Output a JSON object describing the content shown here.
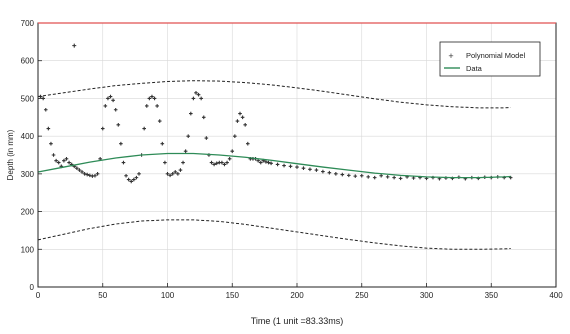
{
  "chart_data": {
    "type": "scatter",
    "title": "",
    "xlabel": "Time (1 unit =83.33ms)",
    "ylabel": "Depth (in mm)",
    "xlim": [
      0,
      400
    ],
    "ylim": [
      0,
      700
    ],
    "xticks": [
      0,
      50,
      100,
      150,
      200,
      250,
      300,
      350,
      400
    ],
    "yticks": [
      0,
      100,
      200,
      300,
      400,
      500,
      600,
      700
    ],
    "grid": true,
    "legend_position": "top-right",
    "series": [
      {
        "name": "Polynomial Model",
        "kind": "markers",
        "color": "#333333",
        "x": [
          2,
          4,
          6,
          8,
          10,
          12,
          14,
          16,
          18,
          20,
          22,
          24,
          26,
          28,
          30,
          32,
          34,
          36,
          38,
          40,
          42,
          44,
          46,
          48,
          50,
          52,
          54,
          56,
          58,
          60,
          62,
          64,
          66,
          68,
          70,
          72,
          74,
          76,
          78,
          80,
          82,
          84,
          86,
          88,
          90,
          92,
          94,
          96,
          98,
          100,
          102,
          104,
          106,
          108,
          110,
          112,
          114,
          116,
          118,
          120,
          122,
          124,
          126,
          128,
          130,
          132,
          134,
          136,
          138,
          140,
          142,
          144,
          146,
          148,
          150,
          152,
          154,
          156,
          158,
          160,
          162,
          164,
          166,
          168,
          170,
          172,
          174,
          176,
          178,
          180,
          185,
          190,
          195,
          200,
          205,
          210,
          215,
          220,
          225,
          230,
          235,
          240,
          245,
          250,
          255,
          260,
          265,
          270,
          275,
          280,
          285,
          290,
          295,
          300,
          305,
          310,
          315,
          320,
          325,
          330,
          335,
          340,
          345,
          350,
          355,
          360,
          365
        ],
        "y": [
          505,
          500,
          470,
          420,
          380,
          350,
          335,
          330,
          320,
          335,
          340,
          330,
          325,
          320,
          315,
          310,
          305,
          300,
          298,
          296,
          294,
          295,
          300,
          340,
          420,
          480,
          500,
          505,
          495,
          470,
          430,
          380,
          330,
          295,
          285,
          280,
          285,
          290,
          300,
          350,
          420,
          480,
          500,
          505,
          500,
          480,
          440,
          380,
          330,
          300,
          296,
          300,
          305,
          300,
          310,
          330,
          360,
          400,
          460,
          500,
          515,
          510,
          500,
          450,
          395,
          350,
          330,
          325,
          328,
          330,
          330,
          325,
          330,
          340,
          360,
          400,
          440,
          460,
          450,
          430,
          380,
          340,
          340,
          340,
          335,
          330,
          335,
          332,
          330,
          328,
          325,
          322,
          320,
          318,
          315,
          312,
          310,
          306,
          303,
          300,
          298,
          296,
          294,
          295,
          292,
          290,
          295,
          292,
          290,
          288,
          292,
          289,
          290,
          288,
          290,
          287,
          289,
          288,
          291,
          287,
          290,
          288,
          291,
          290,
          292,
          290,
          290
        ]
      },
      {
        "name": "Data",
        "kind": "line",
        "color": "#2e8b57",
        "x": [
          0,
          20,
          40,
          60,
          80,
          100,
          120,
          140,
          160,
          180,
          200,
          220,
          240,
          260,
          280,
          300,
          320,
          340,
          360,
          365
        ],
        "y": [
          305,
          318,
          331,
          342,
          350,
          354,
          354,
          350,
          344,
          336,
          327,
          318,
          310,
          302,
          296,
          292,
          290,
          290,
          292,
          293
        ]
      },
      {
        "name": "",
        "kind": "dashed-line",
        "color": "#222222",
        "x": [
          0,
          20,
          40,
          60,
          80,
          100,
          120,
          140,
          160,
          180,
          200,
          220,
          240,
          260,
          280,
          300,
          320,
          340,
          360,
          365
        ],
        "y": [
          505,
          515,
          525,
          534,
          540,
          545,
          547,
          546,
          542,
          536,
          528,
          519,
          509,
          499,
          490,
          483,
          478,
          475,
          475,
          476
        ]
      },
      {
        "name": "",
        "kind": "dashed-line",
        "color": "#222222",
        "x": [
          0,
          20,
          40,
          60,
          80,
          100,
          120,
          140,
          160,
          180,
          200,
          220,
          240,
          260,
          280,
          300,
          320,
          340,
          360,
          365
        ],
        "y": [
          125,
          140,
          155,
          167,
          175,
          178,
          178,
          174,
          166,
          156,
          146,
          136,
          126,
          117,
          109,
          103,
          100,
          100,
          101,
          102
        ]
      }
    ],
    "annotations": [
      {
        "x": 28,
        "y": 640,
        "label": "+"
      }
    ]
  }
}
